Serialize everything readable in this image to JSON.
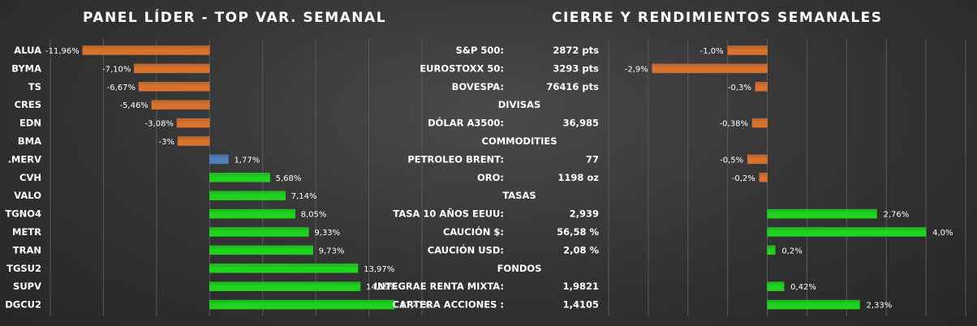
{
  "titles": {
    "left": "PANEL LÍDER - TOP VAR. SEMANAL",
    "right": "CIERRE Y RENDIMIENTOS  SEMANALES"
  },
  "colors": {
    "negative": "#d9722f",
    "positive": "#1fd41f",
    "index": "#4f81bd",
    "grid": "#5a5a5a"
  },
  "chart_data": [
    {
      "type": "bar",
      "orientation": "horizontal",
      "title": "PANEL LÍDER - TOP VAR. SEMANAL",
      "categories": [
        "ALUA",
        "BYMA",
        "TS",
        "CRES",
        "EDN",
        "BMA",
        ".MERV",
        "CVH",
        "VALO",
        "TGNO4",
        "METR",
        "TRAN",
        "TGSU2",
        "SUPV",
        "DGCU2"
      ],
      "values": [
        -11.96,
        -7.1,
        -6.67,
        -5.46,
        -3.08,
        -3.0,
        1.77,
        5.68,
        7.14,
        8.05,
        9.33,
        9.73,
        13.97,
        14.19,
        17.41
      ],
      "labels": [
        "-11,96%",
        "-7,10%",
        "-6,67%",
        "-5,46%",
        "-3,08%",
        "-3%",
        "1,77%",
        "5,68%",
        "7,14%",
        "8,05%",
        "9,33%",
        "9,73%",
        "13,97%",
        "14,19%",
        "17,41%"
      ],
      "highlight": ".MERV",
      "xlim": [
        -15,
        20
      ]
    },
    {
      "type": "bar",
      "orientation": "horizontal",
      "title": "CIERRE Y RENDIMIENTOS  SEMANALES",
      "rows": [
        {
          "kind": "item",
          "name": "S&P 500:",
          "close": "2872 pts",
          "value": -1.0,
          "label": "-1,0%"
        },
        {
          "kind": "item",
          "name": "EUROSTOXX 50:",
          "close": "3293 pts",
          "value": -2.9,
          "label": "-2,9%"
        },
        {
          "kind": "item",
          "name": "BOVESPA:",
          "close": "76416 pts",
          "value": -0.3,
          "label": "-0,3%"
        },
        {
          "kind": "section",
          "name": "DIVISAS"
        },
        {
          "kind": "item",
          "name": "DÓLAR A3500:",
          "close": "36,985",
          "value": -0.38,
          "label": "-0,38%"
        },
        {
          "kind": "section",
          "name": "COMMODITIES"
        },
        {
          "kind": "item",
          "name": "PETROLEO BRENT:",
          "close": "77",
          "value": -0.5,
          "label": "-0,5%"
        },
        {
          "kind": "item",
          "name": "ORO:",
          "close": "1198 oz",
          "value": -0.2,
          "label": "-0,2%"
        },
        {
          "kind": "section",
          "name": "TASAS"
        },
        {
          "kind": "item",
          "name": "TASA 10 AÑOS EEUU:",
          "close": "2,939",
          "value": 2.76,
          "label": "2,76%"
        },
        {
          "kind": "item",
          "name": "CAUCIÓN $:",
          "close": "56,58 %",
          "value": 4.0,
          "label": "4,0%"
        },
        {
          "kind": "item",
          "name": "CAUCIÓN USD:",
          "close": "2,08 %",
          "value": 0.2,
          "label": "0,2%"
        },
        {
          "kind": "section",
          "name": "FONDOS"
        },
        {
          "kind": "item",
          "name": "INTEGRAE RENTA MIXTA:",
          "close": "1,9821",
          "value": 0.42,
          "label": "0,42%"
        },
        {
          "kind": "item",
          "name": "CARTERA ACCIONES :",
          "close": "1,4105",
          "value": 2.33,
          "label": "2,33%"
        }
      ],
      "xlim": [
        -4,
        5
      ]
    }
  ]
}
